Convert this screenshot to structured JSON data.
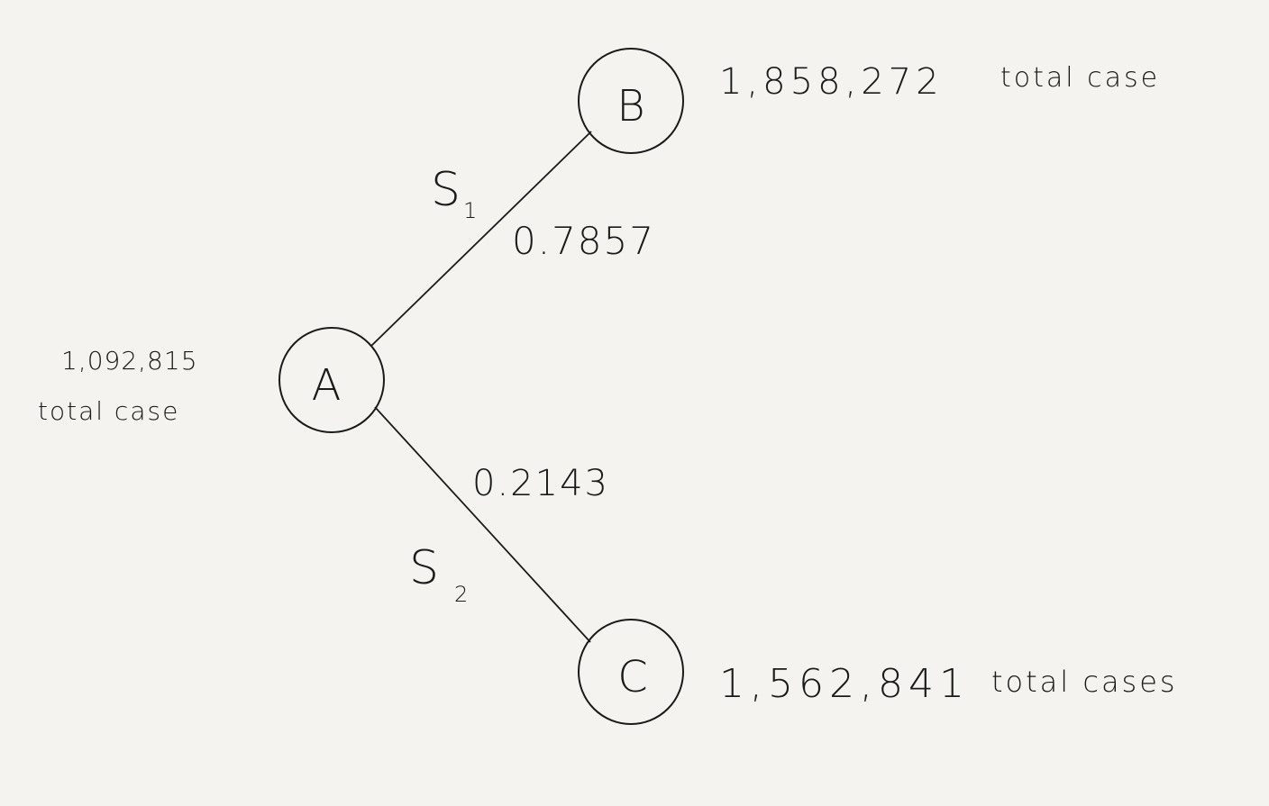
{
  "nodes": {
    "a": {
      "label": "A",
      "total_number": "1,092,815",
      "total_text": "total case"
    },
    "b": {
      "label": "B",
      "total_number": "1,858,272",
      "total_text": "total case"
    },
    "c": {
      "label": "C",
      "total_number": "1,562,841",
      "total_text": "total cases"
    }
  },
  "edges": {
    "ab": {
      "label": "S",
      "subscript": "1",
      "probability": "0.7857"
    },
    "ac": {
      "label": "S",
      "subscript": "2",
      "probability": "0.2143"
    }
  }
}
